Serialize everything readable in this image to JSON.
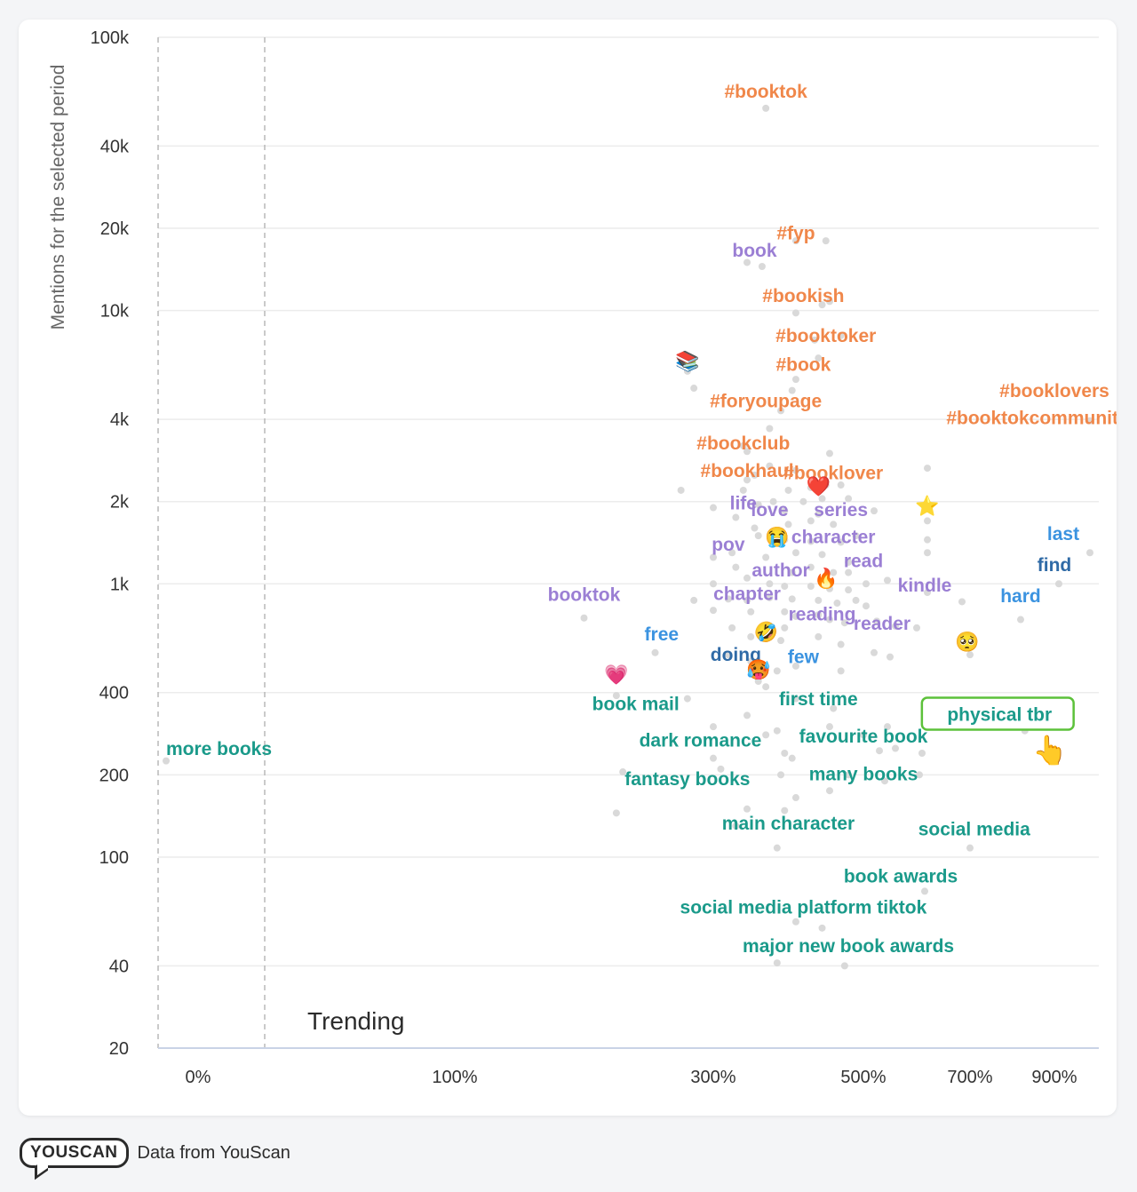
{
  "chart_data": {
    "type": "scatter",
    "title": "",
    "ylabel": "Mentions for the selected period",
    "xlabel": "",
    "annotation": "Trending",
    "y_scale": "log",
    "y_ticks": [
      100000,
      40000,
      20000,
      10000,
      4000,
      2000,
      1000,
      400,
      200,
      100,
      40,
      20
    ],
    "y_tick_labels": [
      "100k",
      "40k",
      "20k",
      "10k",
      "4k",
      "2k",
      "1k",
      "400",
      "200",
      "100",
      "40",
      "20"
    ],
    "x_ticks": [
      0,
      100,
      300,
      500,
      700,
      900
    ],
    "x_tick_labels": [
      "0%",
      "100%",
      "300%",
      "500%",
      "700%",
      "900%"
    ],
    "xlim": [
      -15,
      950
    ],
    "ylim": [
      20,
      100000
    ],
    "colors": {
      "orange": "#f0874a",
      "purple": "#9b7fd4",
      "blue": "#3b93e0",
      "darkblue": "#2f6aa6",
      "teal": "#1a9a8a",
      "highlight": "#5cc13a",
      "dot": "#d9d9d9"
    },
    "labels": [
      {
        "text": "#booktok",
        "x": 370,
        "y": 61000,
        "color": "orange"
      },
      {
        "text": "#fyp",
        "x": 410,
        "y": 18500,
        "color": "orange"
      },
      {
        "text": "book",
        "x": 355,
        "y": 16000,
        "color": "purple"
      },
      {
        "text": "#bookish",
        "x": 420,
        "y": 10900,
        "color": "orange"
      },
      {
        "text": "#booktoker",
        "x": 450,
        "y": 7800,
        "color": "orange"
      },
      {
        "text": "#book",
        "x": 420,
        "y": 6100,
        "color": "orange"
      },
      {
        "text": "#booklovers",
        "x": 900,
        "y": 4900,
        "color": "orange"
      },
      {
        "text": "#foryoupage",
        "x": 370,
        "y": 4500,
        "color": "orange"
      },
      {
        "text": "#booktokcommunity",
        "x": 860,
        "y": 3900,
        "color": "orange"
      },
      {
        "text": "#bookclub",
        "x": 340,
        "y": 3150,
        "color": "orange"
      },
      {
        "text": "#bookhaul",
        "x": 345,
        "y": 2500,
        "color": "orange"
      },
      {
        "text": "#booklover",
        "x": 460,
        "y": 2450,
        "color": "orange"
      },
      {
        "text": "life",
        "x": 340,
        "y": 1900,
        "color": "purple"
      },
      {
        "text": "love",
        "x": 375,
        "y": 1800,
        "color": "purple"
      },
      {
        "text": "series",
        "x": 470,
        "y": 1800,
        "color": "purple"
      },
      {
        "text": "character",
        "x": 460,
        "y": 1430,
        "color": "purple"
      },
      {
        "text": "pov",
        "x": 320,
        "y": 1340,
        "color": "purple"
      },
      {
        "text": "read",
        "x": 500,
        "y": 1170,
        "color": "purple"
      },
      {
        "text": "author",
        "x": 390,
        "y": 1080,
        "color": "purple"
      },
      {
        "text": "kindle",
        "x": 615,
        "y": 950,
        "color": "purple"
      },
      {
        "text": "booktok",
        "x": 200,
        "y": 880,
        "color": "purple"
      },
      {
        "text": "chapter",
        "x": 345,
        "y": 885,
        "color": "purple"
      },
      {
        "text": "reading",
        "x": 445,
        "y": 745,
        "color": "purple"
      },
      {
        "text": "reader",
        "x": 535,
        "y": 690,
        "color": "purple"
      },
      {
        "text": "last",
        "x": 910,
        "y": 1470,
        "color": "blue"
      },
      {
        "text": "find",
        "x": 900,
        "y": 1130,
        "color": "darkblue"
      },
      {
        "text": "hard",
        "x": 820,
        "y": 870,
        "color": "blue"
      },
      {
        "text": "free",
        "x": 260,
        "y": 630,
        "color": "blue"
      },
      {
        "text": "doing",
        "x": 330,
        "y": 530,
        "color": "darkblue"
      },
      {
        "text": "few",
        "x": 420,
        "y": 520,
        "color": "blue"
      },
      {
        "text": "book mail",
        "x": 240,
        "y": 350,
        "color": "teal"
      },
      {
        "text": "first time",
        "x": 440,
        "y": 365,
        "color": "teal"
      },
      {
        "text": "physical tbr",
        "x": 770,
        "y": 320,
        "color": "teal",
        "highlight": true
      },
      {
        "text": "dark romance",
        "x": 290,
        "y": 258,
        "color": "teal"
      },
      {
        "text": "favourite book",
        "x": 500,
        "y": 266,
        "color": "teal"
      },
      {
        "text": "more books",
        "x": -12,
        "y": 240,
        "color": "teal"
      },
      {
        "text": "fantasy books",
        "x": 280,
        "y": 186,
        "color": "teal"
      },
      {
        "text": "many books",
        "x": 500,
        "y": 194,
        "color": "teal"
      },
      {
        "text": "main character",
        "x": 400,
        "y": 128,
        "color": "teal"
      },
      {
        "text": "social media",
        "x": 710,
        "y": 122,
        "color": "teal"
      },
      {
        "text": "book awards",
        "x": 570,
        "y": 82,
        "color": "teal"
      },
      {
        "text": "social media platform tiktok",
        "x": 420,
        "y": 63,
        "color": "teal"
      },
      {
        "text": "major new book awards",
        "x": 480,
        "y": 45.5,
        "color": "teal"
      }
    ],
    "emojis": [
      {
        "name": "books-emoji",
        "char": "📚",
        "x": 280,
        "y": 6600
      },
      {
        "name": "heart-emoji",
        "char": "❤️",
        "x": 440,
        "y": 2300
      },
      {
        "name": "star-emoji",
        "char": "⭐",
        "x": 620,
        "y": 1950
      },
      {
        "name": "crying-emoji",
        "char": "😭",
        "x": 385,
        "y": 1500
      },
      {
        "name": "fire-emoji",
        "char": "🔥",
        "x": 450,
        "y": 1060
      },
      {
        "name": "rofl-emoji",
        "char": "🤣",
        "x": 370,
        "y": 675
      },
      {
        "name": "pleading-emoji",
        "char": "🥺",
        "x": 695,
        "y": 620
      },
      {
        "name": "hot-face-emoji",
        "char": "🥵",
        "x": 360,
        "y": 490
      },
      {
        "name": "pink-heart-emoji",
        "char": "💗",
        "x": 225,
        "y": 470
      },
      {
        "name": "pointing-hand-emoji",
        "char": "👆",
        "x": 890,
        "y": 243
      }
    ],
    "points": [
      [
        370,
        55000
      ],
      [
        410,
        18000
      ],
      [
        450,
        18000
      ],
      [
        345,
        15000
      ],
      [
        365,
        14500
      ],
      [
        455,
        10800
      ],
      [
        445,
        10500
      ],
      [
        410,
        9800
      ],
      [
        470,
        8100
      ],
      [
        435,
        7800
      ],
      [
        440,
        6700
      ],
      [
        410,
        5600
      ],
      [
        280,
        6000
      ],
      [
        285,
        5200
      ],
      [
        405,
        5100
      ],
      [
        390,
        4300
      ],
      [
        375,
        3700
      ],
      [
        940,
        3950
      ],
      [
        340,
        3200
      ],
      [
        345,
        3050
      ],
      [
        455,
        3000
      ],
      [
        375,
        2700
      ],
      [
        355,
        2500
      ],
      [
        410,
        2600
      ],
      [
        620,
        2650
      ],
      [
        345,
        2400
      ],
      [
        400,
        2200
      ],
      [
        430,
        2250
      ],
      [
        450,
        2300
      ],
      [
        470,
        2300
      ],
      [
        340,
        2200
      ],
      [
        275,
        2200
      ],
      [
        380,
        2000
      ],
      [
        420,
        2000
      ],
      [
        445,
        2050
      ],
      [
        480,
        2050
      ],
      [
        300,
        1900
      ],
      [
        360,
        1950
      ],
      [
        395,
        1850
      ],
      [
        330,
        1750
      ],
      [
        440,
        1800
      ],
      [
        520,
        1850
      ],
      [
        430,
        1700
      ],
      [
        355,
        1600
      ],
      [
        400,
        1650
      ],
      [
        460,
        1650
      ],
      [
        620,
        1700
      ],
      [
        360,
        1500
      ],
      [
        395,
        1450
      ],
      [
        430,
        1430
      ],
      [
        470,
        1420
      ],
      [
        490,
        1500
      ],
      [
        620,
        1450
      ],
      [
        300,
        1250
      ],
      [
        325,
        1300
      ],
      [
        370,
        1250
      ],
      [
        410,
        1300
      ],
      [
        445,
        1280
      ],
      [
        480,
        1200
      ],
      [
        620,
        1300
      ],
      [
        940,
        1300
      ],
      [
        330,
        1150
      ],
      [
        405,
        1100
      ],
      [
        430,
        1150
      ],
      [
        460,
        1100
      ],
      [
        480,
        1100
      ],
      [
        505,
        1000
      ],
      [
        545,
        1030
      ],
      [
        300,
        1000
      ],
      [
        345,
        1050
      ],
      [
        375,
        1000
      ],
      [
        395,
        980
      ],
      [
        430,
        980
      ],
      [
        455,
        960
      ],
      [
        480,
        950
      ],
      [
        620,
        930
      ],
      [
        905,
        1000
      ],
      [
        285,
        870
      ],
      [
        320,
        880
      ],
      [
        345,
        870
      ],
      [
        375,
        890
      ],
      [
        405,
        880
      ],
      [
        440,
        870
      ],
      [
        465,
        850
      ],
      [
        490,
        870
      ],
      [
        505,
        830
      ],
      [
        685,
        860
      ],
      [
        300,
        800
      ],
      [
        350,
        790
      ],
      [
        395,
        790
      ],
      [
        410,
        760
      ],
      [
        440,
        770
      ],
      [
        455,
        740
      ],
      [
        475,
        720
      ],
      [
        525,
        730
      ],
      [
        560,
        700
      ],
      [
        600,
        690
      ],
      [
        820,
        740
      ],
      [
        200,
        750
      ],
      [
        325,
        690
      ],
      [
        370,
        700
      ],
      [
        395,
        690
      ],
      [
        350,
        640
      ],
      [
        390,
        620
      ],
      [
        440,
        640
      ],
      [
        470,
        600
      ],
      [
        520,
        560
      ],
      [
        550,
        540
      ],
      [
        700,
        550
      ],
      [
        255,
        560
      ],
      [
        320,
        550
      ],
      [
        350,
        520
      ],
      [
        365,
        480
      ],
      [
        385,
        480
      ],
      [
        410,
        500
      ],
      [
        470,
        480
      ],
      [
        360,
        440
      ],
      [
        370,
        420
      ],
      [
        225,
        390
      ],
      [
        280,
        380
      ],
      [
        410,
        380
      ],
      [
        460,
        350
      ],
      [
        300,
        300
      ],
      [
        345,
        330
      ],
      [
        370,
        280
      ],
      [
        385,
        290
      ],
      [
        455,
        300
      ],
      [
        500,
        280
      ],
      [
        545,
        300
      ],
      [
        830,
        290
      ],
      [
        395,
        240
      ],
      [
        530,
        245
      ],
      [
        560,
        250
      ],
      [
        610,
        240
      ],
      [
        300,
        230
      ],
      [
        405,
        230
      ],
      [
        -12,
        225
      ],
      [
        230,
        205
      ],
      [
        310,
        210
      ],
      [
        390,
        200
      ],
      [
        480,
        200
      ],
      [
        540,
        190
      ],
      [
        605,
        200
      ],
      [
        455,
        175
      ],
      [
        410,
        165
      ],
      [
        345,
        150
      ],
      [
        395,
        148
      ],
      [
        225,
        145
      ],
      [
        330,
        130
      ],
      [
        385,
        108
      ],
      [
        700,
        108
      ],
      [
        615,
        75
      ],
      [
        410,
        58
      ],
      [
        445,
        55
      ],
      [
        385,
        41
      ],
      [
        475,
        40
      ]
    ]
  },
  "footer": {
    "logo_text": "YOUSCAN",
    "source_text": "Data from YouScan"
  }
}
